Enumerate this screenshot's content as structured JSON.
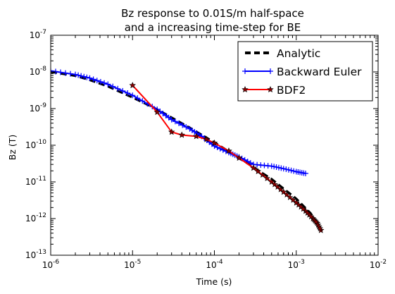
{
  "chart_data": {
    "type": "line",
    "title_line1": "Bz response to 0.01S/m half-space",
    "title_line2": "and a increasing time-step for BE",
    "xlabel": "Time (s)",
    "ylabel": "Bz (T)",
    "xscale": "log",
    "yscale": "log",
    "xlim": [
      1e-06,
      0.01
    ],
    "ylim": [
      1e-13,
      1e-07
    ],
    "x_ticks": [
      {
        "base": "10",
        "exp": "-6",
        "value": 1e-06
      },
      {
        "base": "10",
        "exp": "-5",
        "value": 1e-05
      },
      {
        "base": "10",
        "exp": "-4",
        "value": 0.0001
      },
      {
        "base": "10",
        "exp": "-3",
        "value": 0.001
      },
      {
        "base": "10",
        "exp": "-2",
        "value": 0.01
      }
    ],
    "y_ticks": [
      {
        "base": "10",
        "exp": "-13",
        "value": 1e-13
      },
      {
        "base": "10",
        "exp": "-12",
        "value": 1e-12
      },
      {
        "base": "10",
        "exp": "-11",
        "value": 1e-11
      },
      {
        "base": "10",
        "exp": "-10",
        "value": 1e-10
      },
      {
        "base": "10",
        "exp": "-9",
        "value": 1e-09
      },
      {
        "base": "10",
        "exp": "-8",
        "value": 1e-08
      },
      {
        "base": "10",
        "exp": "-7",
        "value": 1e-07
      }
    ],
    "grid": false,
    "legend_position": "top-right",
    "series": [
      {
        "name": "Analytic",
        "color": "#000000",
        "style": "dashed",
        "marker": "none",
        "x": [
          1e-06,
          2e-06,
          3e-06,
          5e-06,
          1e-05,
          2e-05,
          5e-05,
          0.0001,
          0.0002,
          0.0005,
          0.001,
          0.0015,
          0.002
        ],
        "y": [
          1e-08,
          7.8e-09,
          6e-09,
          4e-09,
          2e-09,
          9.5e-10,
          3e-10,
          1.2e-10,
          4.5e-11,
          1.2e-11,
          3.5e-12,
          1.4e-12,
          5e-13
        ]
      },
      {
        "name": "Backward Euler",
        "color": "#0000ff",
        "style": "solid",
        "marker": "plus",
        "x": [
          1e-06,
          2e-06,
          3e-06,
          5e-06,
          1e-05,
          2e-05,
          3e-05,
          5e-05,
          7e-05,
          0.0001,
          0.00015,
          0.0002,
          0.0003,
          0.0005,
          0.0007,
          0.001,
          0.0013
        ],
        "y": [
          1.07e-08,
          8.5e-09,
          6.8e-09,
          4.6e-09,
          2.3e-09,
          9.5e-10,
          5e-10,
          2.8e-10,
          1.75e-10,
          9.5e-11,
          6.3e-11,
          4.8e-11,
          3e-11,
          2.7e-11,
          2.3e-11,
          1.9e-11,
          1.7e-11
        ]
      },
      {
        "name": "BDF2",
        "color": "#ff0000",
        "style": "solid",
        "marker": "star",
        "x": [
          1e-05,
          2e-05,
          3e-05,
          4e-05,
          6e-05,
          8e-05,
          0.0001,
          0.00015,
          0.0002,
          0.0003,
          0.0005,
          0.0007,
          0.001,
          0.0013,
          0.0016,
          0.0018,
          0.002
        ],
        "y": [
          4.3e-09,
          8e-10,
          2.3e-10,
          1.9e-10,
          1.75e-10,
          1.45e-10,
          1.15e-10,
          7e-11,
          4.5e-11,
          2.4e-11,
          1e-11,
          5.3e-12,
          2.7e-12,
          1.6e-12,
          1e-12,
          7.5e-13,
          4.8e-13
        ]
      }
    ]
  }
}
